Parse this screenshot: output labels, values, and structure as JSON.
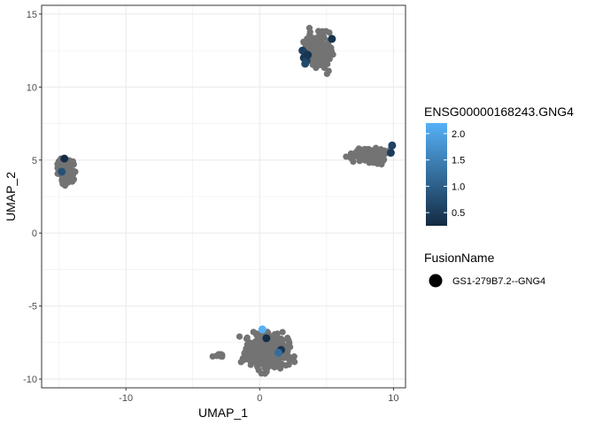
{
  "chart_data": {
    "type": "scatter",
    "xlabel": "UMAP_1",
    "ylabel": "UMAP_2",
    "xlim": [
      -16.3,
      10.9
    ],
    "ylim": [
      -10.6,
      15.6
    ],
    "x_ticks": [
      -10,
      0,
      10
    ],
    "x_tick_labels": [
      "-10",
      "0",
      "10"
    ],
    "y_ticks": [
      -10,
      -5,
      0,
      5,
      10,
      15
    ],
    "y_tick_labels": [
      "-10",
      "-5",
      "0",
      "5",
      "10",
      "15"
    ],
    "grid": true,
    "background_color": "#ffffff",
    "grid_color": "#ebebeb",
    "base_point_color": "#737373",
    "color_legend": {
      "title": "ENSG00000168243.GNG4",
      "low_color": "#132b43",
      "high_color": "#56b1f7",
      "min": 0.25,
      "max": 2.2,
      "ticks": [
        0.5,
        1.0,
        1.5,
        2.0
      ],
      "tick_labels": [
        "0.5",
        "1.0",
        "1.5",
        "2.0"
      ]
    },
    "shape_legend": {
      "title": "FusionName",
      "entries": [
        "GS1-279B7.2--GNG4"
      ]
    },
    "clusters": [
      {
        "x_range": [
          -15.3,
          -13.7
        ],
        "y_range": [
          3.2,
          5.3
        ],
        "n": 160
      },
      {
        "x_range": [
          6.2,
          10.1
        ],
        "y_range": [
          4.6,
          6.1
        ],
        "n": 140
      },
      {
        "x_range": [
          3.0,
          5.9
        ],
        "y_range": [
          10.6,
          14.3
        ],
        "n": 150
      },
      {
        "x_range": [
          -1.9,
          3.0
        ],
        "y_range": [
          -9.9,
          -6.3
        ],
        "n": 300
      },
      {
        "x_range": [
          -3.6,
          -2.5
        ],
        "y_range": [
          -8.6,
          -8.2
        ],
        "n": 12
      }
    ],
    "fusion_points": [
      {
        "x": 3.4,
        "y": 12.3,
        "value": 0.5
      },
      {
        "x": 3.3,
        "y": 12.0,
        "value": 0.45
      },
      {
        "x": 3.5,
        "y": 11.8,
        "value": 0.6
      },
      {
        "x": 3.2,
        "y": 12.5,
        "value": 0.55
      },
      {
        "x": 3.6,
        "y": 12.2,
        "value": 0.4
      },
      {
        "x": 3.4,
        "y": 11.6,
        "value": 0.7
      },
      {
        "x": 5.4,
        "y": 13.3,
        "value": 0.35
      },
      {
        "x": 9.9,
        "y": 6.0,
        "value": 0.6
      },
      {
        "x": 9.8,
        "y": 5.5,
        "value": 0.5
      },
      {
        "x": -14.6,
        "y": 5.1,
        "value": 0.3
      },
      {
        "x": -14.8,
        "y": 4.2,
        "value": 0.8
      },
      {
        "x": 0.2,
        "y": -6.6,
        "value": 2.2
      },
      {
        "x": 1.6,
        "y": -8.0,
        "value": 0.4
      },
      {
        "x": 1.4,
        "y": -8.2,
        "value": 1.2
      },
      {
        "x": 0.5,
        "y": -7.2,
        "value": 0.3
      }
    ]
  }
}
